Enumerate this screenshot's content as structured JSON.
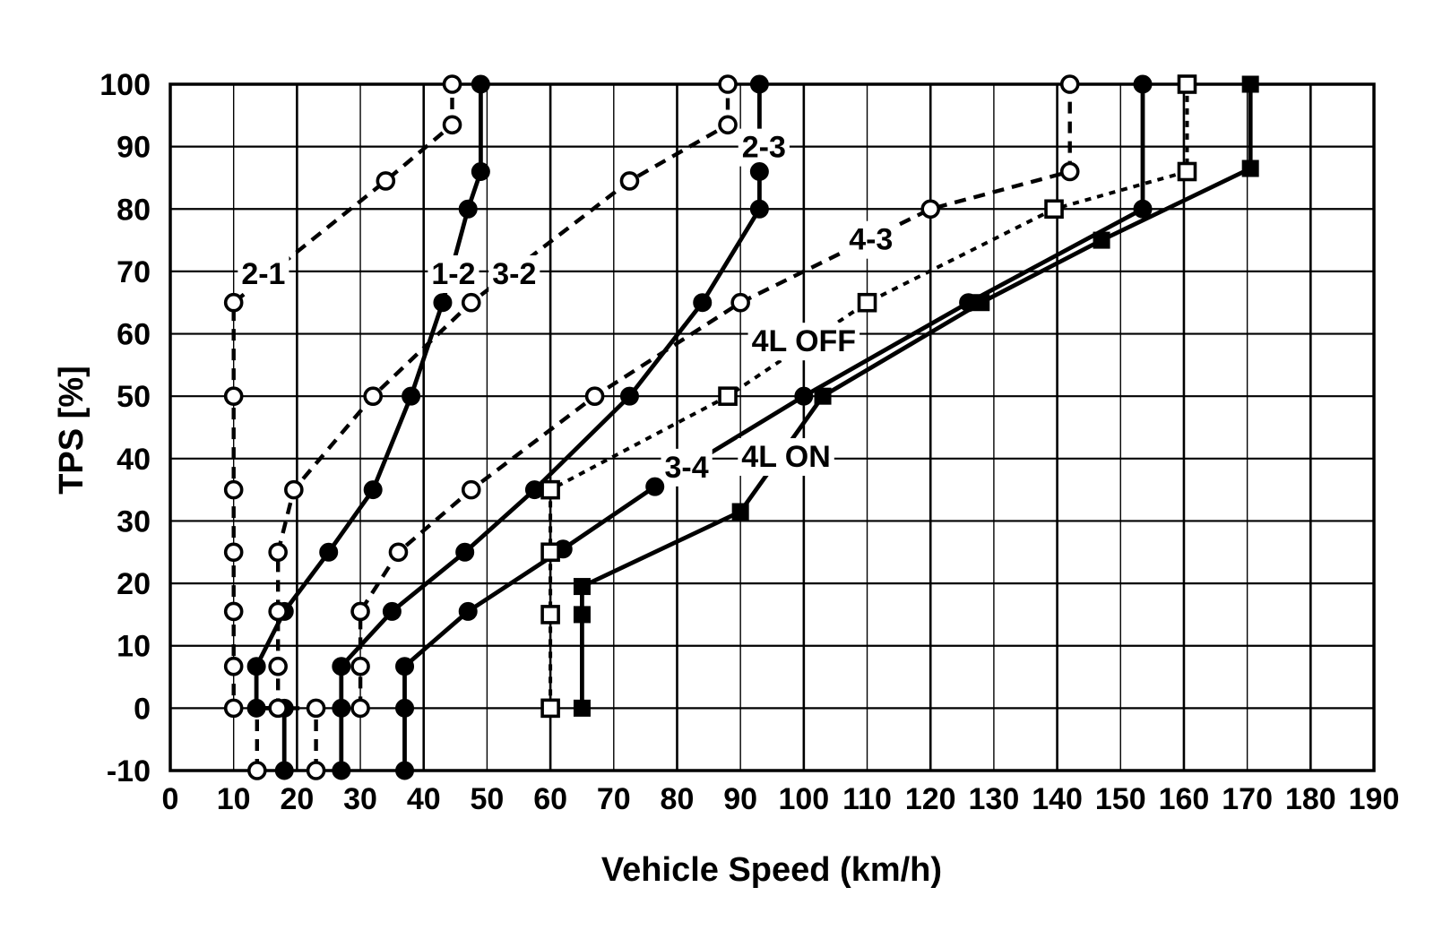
{
  "colors": {
    "ink": "#000000",
    "background": "#ffffff"
  },
  "chart_data": {
    "type": "line",
    "title": "",
    "xlabel": "Vehicle Speed (km/h)",
    "ylabel": "TPS [%]",
    "xlim": [
      0,
      190
    ],
    "ylim": [
      -10,
      100
    ],
    "x_ticks": [
      0,
      10,
      20,
      30,
      40,
      50,
      60,
      70,
      80,
      90,
      100,
      110,
      120,
      130,
      140,
      150,
      160,
      170,
      180,
      190
    ],
    "y_ticks": [
      -10,
      0,
      10,
      20,
      30,
      40,
      50,
      60,
      70,
      80,
      90,
      100
    ],
    "grid": "both, every 10 units",
    "legend_position": "labels drawn inline on chart",
    "series": [
      {
        "name": "2-1",
        "line": "dashed",
        "marker": "circle-open",
        "points": [
          [
            13.7,
            -10
          ],
          [
            13.7,
            0
          ],
          [
            10,
            0
          ],
          [
            10,
            6.7
          ],
          [
            10,
            15.5
          ],
          [
            10,
            25
          ],
          [
            10,
            35
          ],
          [
            10,
            50
          ],
          [
            10,
            65
          ],
          [
            34,
            84.5
          ],
          [
            44.5,
            93.5
          ],
          [
            44.5,
            100
          ]
        ],
        "no_marker_indices": [
          1
        ]
      },
      {
        "name": "1-2",
        "line": "solid",
        "marker": "circle-filled",
        "points": [
          [
            18,
            -10
          ],
          [
            18,
            0
          ],
          [
            13.6,
            0
          ],
          [
            13.6,
            6.7
          ],
          [
            18,
            15.5
          ],
          [
            25,
            25
          ],
          [
            32,
            35
          ],
          [
            38,
            50
          ],
          [
            43,
            65
          ],
          [
            47,
            80
          ],
          [
            49,
            86
          ],
          [
            49,
            100
          ]
        ],
        "no_marker_indices": []
      },
      {
        "name": "3-2",
        "line": "dashed",
        "marker": "circle-open",
        "points": [
          [
            23,
            -10
          ],
          [
            23,
            0
          ],
          [
            17,
            0
          ],
          [
            17,
            6.7
          ],
          [
            17,
            15.5
          ],
          [
            17,
            25
          ],
          [
            19.5,
            35
          ],
          [
            32,
            50
          ],
          [
            47.5,
            65
          ],
          [
            72.5,
            84.5
          ],
          [
            88,
            93.5
          ],
          [
            88,
            100
          ]
        ],
        "no_marker_indices": []
      },
      {
        "name": "2-3",
        "line": "solid",
        "marker": "circle-filled",
        "points": [
          [
            27,
            -10
          ],
          [
            27,
            0
          ],
          [
            27,
            6.7
          ],
          [
            35,
            15.5
          ],
          [
            46.5,
            25
          ],
          [
            57.5,
            35
          ],
          [
            72.5,
            50
          ],
          [
            84,
            65
          ],
          [
            93,
            80
          ],
          [
            93,
            86
          ],
          [
            93,
            100
          ]
        ],
        "no_marker_indices": []
      },
      {
        "name": "4-3",
        "line": "dashed",
        "marker": "circle-open",
        "points": [
          [
            30,
            0
          ],
          [
            30,
            6.7
          ],
          [
            30,
            15.5
          ],
          [
            36,
            25
          ],
          [
            47.5,
            35
          ],
          [
            67,
            50
          ],
          [
            90,
            65
          ],
          [
            120,
            80
          ],
          [
            142,
            86
          ],
          [
            142,
            100
          ]
        ],
        "no_marker_indices": []
      },
      {
        "name": "3-4",
        "line": "solid",
        "marker": "circle-filled",
        "points": [
          [
            37,
            -10
          ],
          [
            37,
            0
          ],
          [
            37,
            6.7
          ],
          [
            47,
            15.5
          ],
          [
            62,
            25.5
          ],
          [
            76.5,
            35.5
          ],
          [
            100,
            50
          ],
          [
            126,
            65
          ],
          [
            153.5,
            80
          ],
          [
            153.5,
            100
          ]
        ],
        "no_marker_indices": []
      },
      {
        "name": "4L OFF",
        "line": "fine-dashed",
        "marker": "square-open",
        "points": [
          [
            60,
            0
          ],
          [
            60,
            15
          ],
          [
            60,
            25
          ],
          [
            60,
            35
          ],
          [
            88,
            50
          ],
          [
            110,
            65
          ],
          [
            139.5,
            80
          ],
          [
            160.5,
            86
          ],
          [
            160.5,
            100
          ]
        ],
        "no_marker_indices": []
      },
      {
        "name": "4L ON",
        "line": "solid",
        "marker": "square-filled",
        "points": [
          [
            65,
            0
          ],
          [
            65,
            15
          ],
          [
            65,
            19.5
          ],
          [
            90,
            31.5
          ],
          [
            103,
            50
          ],
          [
            128,
            65
          ],
          [
            147,
            75
          ],
          [
            170.5,
            86.5
          ],
          [
            170.5,
            100
          ]
        ],
        "no_marker_indices": []
      }
    ],
    "annotations": [
      {
        "text": "2-1",
        "x": 14.7,
        "y": 69.7
      },
      {
        "text": "1-2",
        "x": 44.7,
        "y": 69.7
      },
      {
        "text": "3-2",
        "x": 54.3,
        "y": 69.7
      },
      {
        "text": "2-3",
        "x": 93.7,
        "y": 90.0
      },
      {
        "text": "4-3",
        "x": 110.6,
        "y": 75.2
      },
      {
        "text": "4L OFF",
        "x": 100.0,
        "y": 58.9
      },
      {
        "text": "3-4",
        "x": 81.5,
        "y": 38.7
      },
      {
        "text": "4L ON",
        "x": 97.2,
        "y": 40.4
      }
    ]
  }
}
